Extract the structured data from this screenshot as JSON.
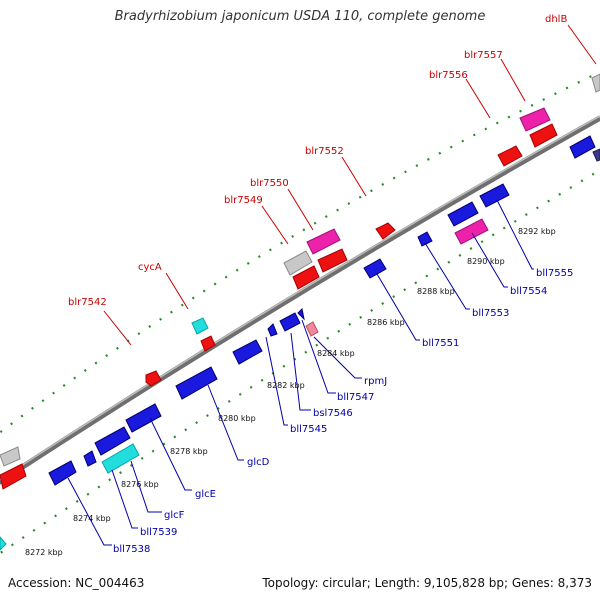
{
  "title": "Bradyrhizobium japonicum USDA 110, complete genome",
  "footer": {
    "accession": "Accession: NC_004463",
    "topology": "Topology: circular; Length: 9,105,828 bp; Genes: 8,373"
  },
  "colors": {
    "backbone": "#8c8c8c",
    "ticks": "#2a8a2a",
    "forward_label": "#cc0000",
    "reverse_label": "#0000aa",
    "gene_blue": "#1a1adf",
    "gene_red": "#ee1111",
    "gene_magenta": "#ee22aa",
    "gene_cyan": "#22dddd",
    "gene_gray": "#c8c8c8"
  },
  "scale_labels": [
    "8272 kbp",
    "8274 kbp",
    "8276 kbp",
    "8278 kbp",
    "8280 kbp",
    "8282 kbp",
    "8284 kbp",
    "8286 kbp",
    "8288 kbp",
    "8290 kbp",
    "8292 kbp"
  ],
  "forward_genes": [
    "blr7542",
    "cycA",
    "blr7549",
    "blr7550",
    "blr7552",
    "blr7556",
    "blr7557",
    "dhlB"
  ],
  "reverse_genes": [
    "bll7538",
    "bll7539",
    "glcF",
    "glcE",
    "glcD",
    "bll7545",
    "bsl7546",
    "bll7547",
    "rpmJ",
    "bll7551",
    "bll7553",
    "bll7554",
    "bll7555"
  ]
}
